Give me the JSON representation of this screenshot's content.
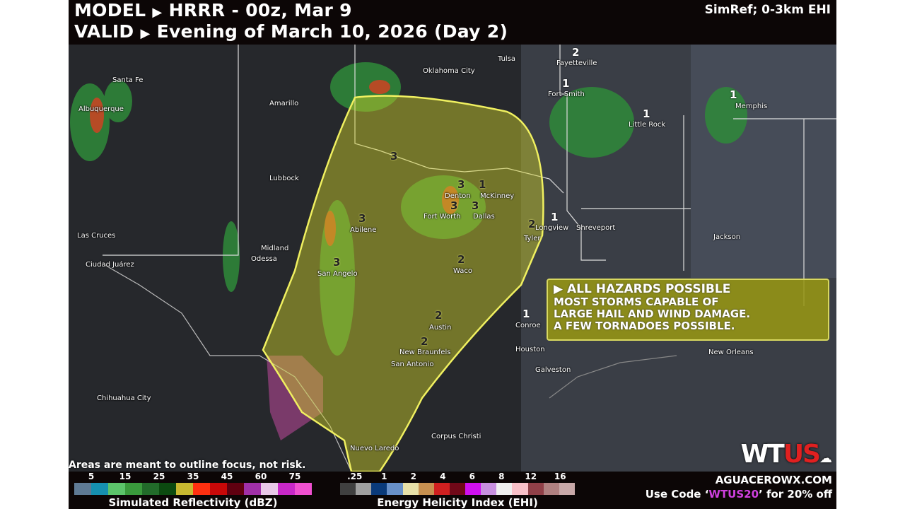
{
  "header": {
    "model_label": "MODEL",
    "model_value": "HRRR - 00z, Mar 9",
    "valid_label": "VALID",
    "valid_value": "Evening of March 10, 2026 (Day 2)",
    "product": "SimRef; 0-3km EHI",
    "arrow": "▶"
  },
  "cities": [
    "Santa Fe",
    "Albuquerque",
    "Amarillo",
    "Oklahoma City",
    "Tulsa",
    "Fayetteville",
    "Fort Smith",
    "Little Rock",
    "Memphis",
    "Lubbock",
    "Las Cruces",
    "Ciudad Juárez",
    "Midland",
    "Odessa",
    "Abilene",
    "San Angelo",
    "Denton",
    "McKinney",
    "Fort Worth",
    "Dallas",
    "Longview",
    "Shreveport",
    "Tyler",
    "Waco",
    "Jackson",
    "Austin",
    "New Braunfels",
    "San Antonio",
    "Conroe",
    "Houston",
    "Galveston",
    "New Orleans",
    "Chihuahua City",
    "Corpus Christi",
    "Nuevo Laredo"
  ],
  "ehi_numbers": [
    "2",
    "1",
    "1",
    "1",
    "3",
    "1",
    "3",
    "3",
    "3",
    "3",
    "1",
    "2",
    "2",
    "3",
    "2",
    "2",
    "1"
  ],
  "callout": {
    "title": "▶ ALL HAZARDS POSSIBLE",
    "lines": [
      "MOST STORMS CAPABLE OF",
      "LARGE HAIL AND WIND DAMAGE.",
      "A FEW TORNADOES POSSIBLE."
    ],
    "color": "#9a9a18"
  },
  "disclaimer": "Areas are meant to outline focus, not risk.",
  "legend": {
    "reflectivity": {
      "title": "Simulated Reflectivity (dBZ)",
      "ticks": [
        "5",
        "15",
        "25",
        "35",
        "45",
        "60",
        "75"
      ],
      "colors": [
        "#5f7a94",
        "#1690b0",
        "#5cc46a",
        "#3a9a3c",
        "#226b2a",
        "#0c4a10",
        "#c8b830",
        "#ff3010",
        "#c80808",
        "#600010",
        "#a030a8",
        "#e8c8e8",
        "#c828c8",
        "#f050d0"
      ]
    },
    "ehi": {
      "title": "Energy Helicity Index (EHI)",
      "ticks": [
        ".25",
        "1",
        "2",
        "4",
        "6",
        "8",
        "12",
        "16"
      ],
      "colors": [
        "#404040",
        "#a0a0a0",
        "#0a3a7a",
        "#6890c8",
        "#e8e0a8",
        "#c89050",
        "#d02020",
        "#700818",
        "#d010f0",
        "#c890e0",
        "#f0f0f0",
        "#f8c0c8",
        "#904048",
        "#b08080",
        "#c8a8a8"
      ]
    }
  },
  "brand": {
    "logo_a": "WT",
    "logo_b": "US",
    "site": "AGUACEROWX.COM",
    "promo_pre": "Use Code ‘",
    "promo_code": "WTUS20",
    "promo_post": "’ for 20% off",
    "accent": "#e02020",
    "code_color": "#d040e0"
  }
}
